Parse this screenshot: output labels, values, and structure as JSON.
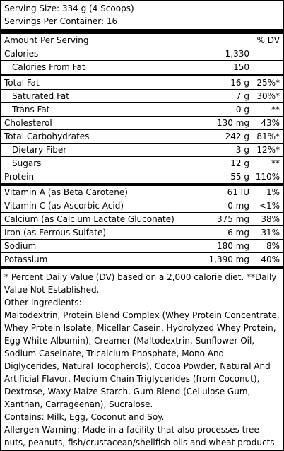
{
  "serving_size": "Serving Size: 334 g (4 Scoops)",
  "servings_per_container": "Servings Per Container: 16",
  "header": {
    "amount_per_serving": "Amount Per Serving",
    "dv": "% DV"
  },
  "rows": [
    {
      "name": "Calories",
      "amount": "1,330",
      "dv": ""
    },
    {
      "name": "Calories From Fat",
      "amount": "150",
      "dv": ""
    },
    {
      "name": "Total Fat",
      "amount": "16 g",
      "dv": "25%*"
    },
    {
      "name": "Saturated Fat",
      "amount": "7 g",
      "dv": "30%*"
    },
    {
      "name": "Trans Fat",
      "amount": "0 g",
      "dv": "**"
    },
    {
      "name": "Cholesterol",
      "amount": "130 mg",
      "dv": "43%"
    },
    {
      "name": "Total Carbohydrates",
      "amount": "242 g",
      "dv": "81%*"
    },
    {
      "name": "Dietary Fiber",
      "amount": "3 g",
      "dv": "12%*"
    },
    {
      "name": "Sugars",
      "amount": "12 g",
      "dv": "**"
    },
    {
      "name": "Protein",
      "amount": "55 g",
      "dv": "110%"
    },
    {
      "name": "Vitamin A (as Beta Carotene)",
      "amount": "61 IU",
      "dv": "1%"
    },
    {
      "name": "Vitamin C (as Ascorbic Acid)",
      "amount": "0 mg",
      "dv": "<1%"
    },
    {
      "name": "Calcium (as Calcium Lactate Gluconate)",
      "amount": "375 mg",
      "dv": "38%"
    },
    {
      "name": "Iron (as Ferrous Sulfate)",
      "amount": "6 mg",
      "dv": "31%"
    },
    {
      "name": "Sodium",
      "amount": "180 mg",
      "dv": "8%"
    },
    {
      "name": "Potassium",
      "amount": "1,390 mg",
      "dv": "40%"
    }
  ],
  "footer": {
    "daily_value_note": "* Percent Daily Value (DV) based on a 2,000 calorie diet. **Daily Value Not Established.",
    "other_ingredients_label": "Other Ingredients:",
    "ingredients": "Maltodextrin, Protein Blend Complex (Whey Protein Concentrate, Whey Protein Isolate, Micellar Casein, Hydrolyzed Whey Protein, Egg White Albumin), Creamer (Maltodextrin, Sunflower Oil, Sodium Caseinate, Tricalcium Phosphate, Mono And Diglycerides, Natural Tocopherols), Cocoa Powder, Natural And Artificial Flavor, Medium Chain Triglycerides (from Coconut), Dextrose, Waxy Maize Starch, Gum Blend (Cellulose Gum, Xanthan, Carrageenan), Sucralose.",
    "contains": "Contains: Milk, Egg, Coconut and Soy.",
    "allergen_warning": "Allergen Warning: Made in a facility that also processes tree nuts, peanuts, fish/crustacean/shellfish oils and wheat products."
  }
}
